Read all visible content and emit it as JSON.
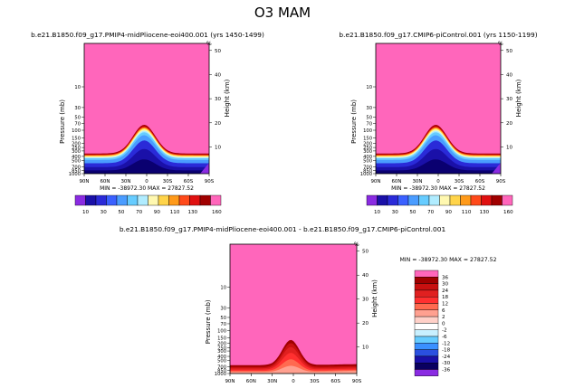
{
  "main_title": "O3 MAM",
  "chart_data": [
    {
      "type": "heatmap",
      "title": "b.e21.B1850.f09_g17.PMIP4-midPliocene-eoi400.001 (yrs 1450-1499)",
      "ylabel": "Pressure (mb)",
      "right_label": "Height (km)",
      "unit_label": "%",
      "x_ticks": [
        "90N",
        "60N",
        "30N",
        "0",
        "30S",
        "60S",
        "90S"
      ],
      "pressure_ticks": [
        "10",
        "30",
        "50",
        "70",
        "100",
        "150",
        "200",
        "250",
        "300",
        "400",
        "500",
        "700",
        "850",
        "1000"
      ],
      "height_ticks": [
        "10",
        "20",
        "30",
        "40",
        "50"
      ],
      "minmax": "MIN = -38972.30    MAX = 27827.52",
      "legend_labels": [
        "10",
        "30",
        "50",
        "70",
        "90",
        "110",
        "130",
        "160"
      ],
      "ylim_mb": [
        1000,
        1
      ],
      "xlim": [
        90,
        -90
      ]
    },
    {
      "type": "heatmap",
      "title": "b.e21.B1850.f09_g17.CMIP6-piControl.001 (yrs 1150-1199)",
      "ylabel": "Pressure (mb)",
      "right_label": "Height (km)",
      "unit_label": "%",
      "x_ticks": [
        "90N",
        "60N",
        "30N",
        "0",
        "30S",
        "60S",
        "90S"
      ],
      "pressure_ticks": [
        "10",
        "30",
        "50",
        "70",
        "100",
        "150",
        "200",
        "250",
        "300",
        "400",
        "500",
        "700",
        "850",
        "1000"
      ],
      "height_ticks": [
        "10",
        "20",
        "30",
        "40",
        "50"
      ],
      "minmax": "MIN = -38972.30    MAX = 27827.52",
      "legend_labels": [
        "10",
        "30",
        "50",
        "70",
        "90",
        "110",
        "130",
        "160"
      ],
      "ylim_mb": [
        1000,
        1
      ],
      "xlim": [
        90,
        -90
      ]
    },
    {
      "type": "heatmap",
      "title": "b.e21.B1850.f09_g17.PMIP4-midPliocene-eoi400.001  -  b.e21.B1850.f09_g17.CMIP6-piControl.001",
      "ylabel": "Pressure (mb)",
      "right_label": "Height (km)",
      "unit_label": "%",
      "x_ticks": [
        "90N",
        "60N",
        "30N",
        "0",
        "30S",
        "60S",
        "90S"
      ],
      "pressure_ticks": [
        "10",
        "30",
        "50",
        "70",
        "100",
        "150",
        "200",
        "250",
        "300",
        "400",
        "500",
        "700",
        "850",
        "1000"
      ],
      "height_ticks": [
        "10",
        "20",
        "30",
        "40",
        "50"
      ],
      "minmax": "MIN = -38972.30    MAX = 27827.52",
      "legend_labels": [
        "36",
        "30",
        "24",
        "18",
        "12",
        "6",
        "2",
        "0",
        "-2",
        "-6",
        "-12",
        "-18",
        "-24",
        "-30",
        "-36"
      ],
      "ylim_mb": [
        1000,
        1
      ],
      "xlim": [
        90,
        -90
      ]
    }
  ],
  "colors": {
    "pink": "#ff66bb",
    "seq_palette": [
      "#8a2be2",
      "#1a10a8",
      "#2a2ad8",
      "#3a60ff",
      "#4a9cff",
      "#66ccff",
      "#b0ecff",
      "#fff8b0",
      "#ffd44a",
      "#ff9a1a",
      "#ff4a1a",
      "#e01010",
      "#a00000",
      "#ff66bb"
    ],
    "diff_palette": [
      "#ff66bb",
      "#a00000",
      "#c81010",
      "#e02020",
      "#ff3030",
      "#ff6a50",
      "#ffa090",
      "#ffd0c8",
      "#ffffff",
      "#c8f0ff",
      "#66ccff",
      "#3a90ff",
      "#2a50e0",
      "#1a10a8",
      "#0a0060",
      "#8a2be2"
    ]
  }
}
